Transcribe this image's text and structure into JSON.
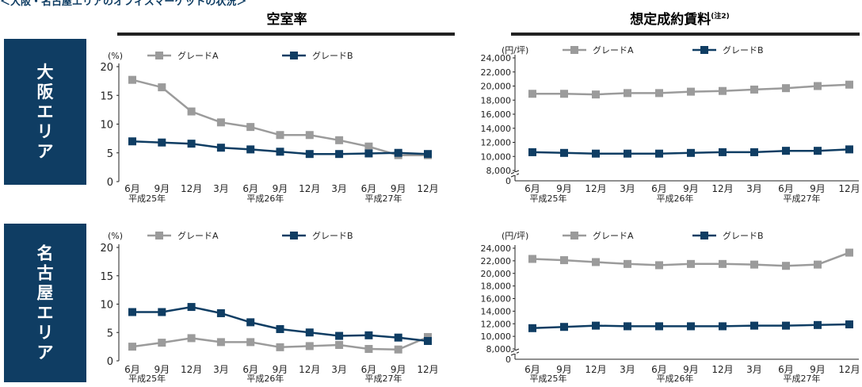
{
  "header": {
    "title_fragment": "＜大阪・名古屋エリアのオフィスマーケットの状況＞",
    "left_title": "空室率",
    "right_title": "想定成約賃料",
    "right_title_note": "(注2)"
  },
  "regions": [
    {
      "key": "osaka",
      "label": "大阪エリア"
    },
    {
      "key": "nagoya",
      "label": "名古屋エリア"
    }
  ],
  "legend": {
    "grade_a": "グレードA",
    "grade_b": "グレードB"
  },
  "units": {
    "vacancy": "(%)",
    "rent": "(円/坪)"
  },
  "x_axis": {
    "months": [
      "6月",
      "9月",
      "12月",
      "3月",
      "6月",
      "9月",
      "12月",
      "3月",
      "6月",
      "9月",
      "12月"
    ],
    "years": [
      {
        "label": "平成25年",
        "at_index": 0.5
      },
      {
        "label": "平成26年",
        "at_index": 4.5
      },
      {
        "label": "平成27年",
        "at_index": 8.5
      }
    ]
  },
  "colors": {
    "grade_a": "#9b9b9b",
    "grade_b": "#0f3d63",
    "axis": "#222222",
    "region_band": "#0f3d63"
  },
  "chart_data": [
    {
      "type": "line",
      "title": "空室率",
      "region": "大阪エリア",
      "ylabel": "(%)",
      "ylim": [
        0,
        20
      ],
      "yticks": [
        0,
        5,
        10,
        15,
        20
      ],
      "categories": [
        "6月",
        "9月",
        "12月",
        "3月",
        "6月",
        "9月",
        "12月",
        "3月",
        "6月",
        "9月",
        "12月"
      ],
      "series": [
        {
          "name": "グレードA",
          "values": [
            17.7,
            16.4,
            12.2,
            10.3,
            9.5,
            8.1,
            8.1,
            7.2,
            6.1,
            4.6,
            4.6
          ]
        },
        {
          "name": "グレードB",
          "values": [
            7.0,
            6.8,
            6.6,
            5.9,
            5.6,
            5.2,
            4.8,
            4.8,
            4.9,
            5.0,
            4.8
          ]
        }
      ]
    },
    {
      "type": "line",
      "title": "想定成約賃料",
      "region": "大阪エリア",
      "ylabel": "(円/坪)",
      "ylim": [
        8000,
        24000
      ],
      "yticks": [
        "0",
        "8,000",
        "10,000",
        "12,000",
        "14,000",
        "16,000",
        "18,000",
        "20,000",
        "22,000",
        "24,000"
      ],
      "axis_break": true,
      "categories": [
        "6月",
        "9月",
        "12月",
        "3月",
        "6月",
        "9月",
        "12月",
        "3月",
        "6月",
        "9月",
        "12月"
      ],
      "series": [
        {
          "name": "グレードA",
          "values": [
            18900,
            18900,
            18800,
            19000,
            19000,
            19200,
            19300,
            19500,
            19700,
            20000,
            20200
          ]
        },
        {
          "name": "グレードB",
          "values": [
            10600,
            10500,
            10400,
            10400,
            10400,
            10500,
            10600,
            10600,
            10800,
            10800,
            11000
          ]
        }
      ]
    },
    {
      "type": "line",
      "title": "空室率",
      "region": "名古屋エリア",
      "ylabel": "(%)",
      "ylim": [
        0,
        20
      ],
      "yticks": [
        0,
        5,
        10,
        15,
        20
      ],
      "categories": [
        "6月",
        "9月",
        "12月",
        "3月",
        "6月",
        "9月",
        "12月",
        "3月",
        "6月",
        "9月",
        "12月"
      ],
      "series": [
        {
          "name": "グレードA",
          "values": [
            2.5,
            3.2,
            4.0,
            3.3,
            3.3,
            2.4,
            2.6,
            2.8,
            2.1,
            2.0,
            4.2
          ]
        },
        {
          "name": "グレードB",
          "values": [
            8.6,
            8.6,
            9.5,
            8.4,
            6.8,
            5.6,
            5.0,
            4.4,
            4.5,
            4.1,
            3.5
          ]
        }
      ]
    },
    {
      "type": "line",
      "title": "想定成約賃料",
      "region": "名古屋エリア",
      "ylabel": "(円/坪)",
      "ylim": [
        8000,
        24000
      ],
      "yticks": [
        "0",
        "8,000",
        "10,000",
        "12,000",
        "14,000",
        "16,000",
        "18,000",
        "20,000",
        "22,000",
        "24,000"
      ],
      "axis_break": true,
      "categories": [
        "6月",
        "9月",
        "12月",
        "3月",
        "6月",
        "9月",
        "12月",
        "3月",
        "6月",
        "9月",
        "12月"
      ],
      "series": [
        {
          "name": "グレードA",
          "values": [
            22300,
            22100,
            21800,
            21500,
            21300,
            21500,
            21500,
            21400,
            21200,
            21400,
            23300
          ]
        },
        {
          "name": "グレードB",
          "values": [
            11300,
            11500,
            11700,
            11600,
            11600,
            11600,
            11600,
            11700,
            11700,
            11800,
            11900
          ]
        }
      ]
    }
  ]
}
